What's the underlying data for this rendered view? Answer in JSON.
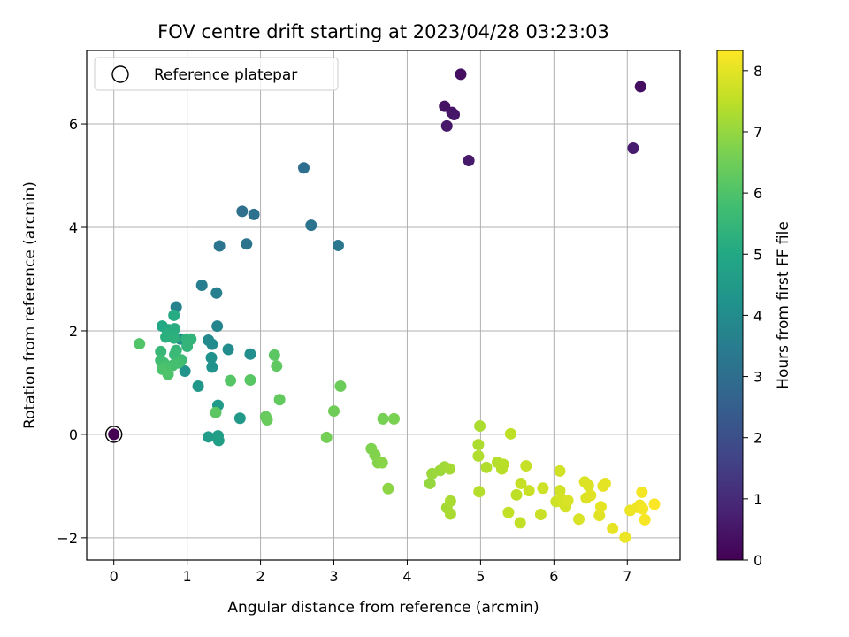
{
  "chart_data": {
    "type": "scatter",
    "title": "FOV centre drift starting at 2023/04/28 03:23:03",
    "xlabel": "Angular distance from reference (arcmin)",
    "ylabel": "Rotation from reference (arcmin)",
    "xlim": [
      -0.37,
      7.72
    ],
    "ylim": [
      -2.43,
      7.42
    ],
    "xticks": [
      0,
      1,
      2,
      3,
      4,
      5,
      6,
      7
    ],
    "xtick_labels": [
      "0",
      "1",
      "2",
      "3",
      "4",
      "5",
      "6",
      "7"
    ],
    "yticks": [
      -2,
      0,
      2,
      4,
      6
    ],
    "ytick_labels": [
      "−2",
      "0",
      "2",
      "4",
      "6"
    ],
    "grid": true,
    "legend": {
      "location": "upper left",
      "entries": [
        "Reference platepar"
      ]
    },
    "reference_point": {
      "x": 0,
      "y": 0
    },
    "colorbar": {
      "label": "Hours from first FF file",
      "colormap": "viridis",
      "range": [
        0,
        8.33
      ],
      "ticks": [
        0,
        1,
        2,
        3,
        4,
        5,
        6,
        7,
        8
      ],
      "tick_labels": [
        "0",
        "1",
        "2",
        "3",
        "4",
        "5",
        "6",
        "7",
        "8"
      ]
    },
    "point_fields": [
      "x_arcmin",
      "y_arcmin",
      "hours"
    ],
    "points": [
      [
        0.0,
        0.0,
        0.0
      ],
      [
        4.73,
        6.96,
        0.3
      ],
      [
        7.18,
        6.72,
        0.3
      ],
      [
        4.51,
        6.34,
        0.4
      ],
      [
        4.61,
        6.22,
        0.45
      ],
      [
        4.64,
        6.18,
        0.5
      ],
      [
        4.54,
        5.96,
        0.55
      ],
      [
        4.84,
        5.29,
        0.6
      ],
      [
        7.08,
        5.53,
        0.65
      ],
      [
        2.59,
        5.15,
        3.0
      ],
      [
        1.75,
        4.31,
        3.05
      ],
      [
        1.91,
        4.25,
        3.1
      ],
      [
        2.69,
        4.04,
        3.15
      ],
      [
        1.81,
        3.68,
        3.2
      ],
      [
        1.44,
        3.64,
        3.25
      ],
      [
        3.06,
        3.65,
        3.3
      ],
      [
        1.2,
        2.88,
        3.5
      ],
      [
        1.4,
        2.73,
        3.55
      ],
      [
        0.85,
        2.46,
        3.7
      ],
      [
        1.41,
        2.09,
        3.75
      ],
      [
        1.29,
        1.82,
        3.9
      ],
      [
        1.34,
        1.74,
        3.95
      ],
      [
        1.56,
        1.64,
        4.0
      ],
      [
        0.91,
        1.84,
        4.05
      ],
      [
        1.86,
        1.55,
        4.1
      ],
      [
        1.33,
        1.48,
        4.15
      ],
      [
        1.34,
        1.3,
        4.2
      ],
      [
        0.97,
        1.22,
        4.25
      ],
      [
        1.15,
        0.93,
        4.4
      ],
      [
        1.72,
        0.31,
        4.45
      ],
      [
        1.42,
        0.56,
        4.5
      ],
      [
        1.29,
        -0.05,
        4.55
      ],
      [
        1.42,
        -0.03,
        4.6
      ],
      [
        1.43,
        -0.12,
        4.65
      ],
      [
        0.66,
        2.09,
        5.0
      ],
      [
        0.75,
        2.02,
        5.05
      ],
      [
        0.82,
        2.3,
        5.1
      ],
      [
        0.83,
        2.04,
        5.15
      ],
      [
        0.73,
        1.94,
        5.2
      ],
      [
        0.71,
        1.88,
        5.25
      ],
      [
        0.82,
        1.86,
        5.3
      ],
      [
        0.99,
        1.84,
        5.35
      ],
      [
        1.05,
        1.84,
        5.4
      ],
      [
        1.0,
        1.7,
        5.45
      ],
      [
        0.85,
        1.62,
        5.5
      ],
      [
        0.64,
        1.6,
        5.55
      ],
      [
        0.83,
        1.54,
        5.6
      ],
      [
        0.92,
        1.44,
        5.65
      ],
      [
        0.64,
        1.43,
        5.7
      ],
      [
        0.68,
        1.38,
        5.75
      ],
      [
        0.88,
        1.38,
        5.8
      ],
      [
        0.8,
        1.33,
        5.85
      ],
      [
        0.7,
        1.3,
        5.9
      ],
      [
        0.66,
        1.26,
        5.95
      ],
      [
        0.74,
        1.16,
        6.0
      ],
      [
        0.35,
        1.75,
        6.05
      ],
      [
        1.59,
        1.04,
        6.1
      ],
      [
        1.86,
        1.05,
        6.15
      ],
      [
        1.39,
        0.42,
        6.2
      ],
      [
        2.19,
        1.53,
        6.2
      ],
      [
        2.22,
        1.32,
        6.25
      ],
      [
        2.26,
        0.67,
        6.3
      ],
      [
        2.07,
        0.34,
        6.35
      ],
      [
        2.09,
        0.28,
        6.4
      ],
      [
        3.09,
        0.93,
        6.45
      ],
      [
        3.0,
        0.45,
        6.5
      ],
      [
        2.9,
        -0.06,
        6.55
      ],
      [
        3.67,
        0.3,
        6.6
      ],
      [
        3.82,
        0.3,
        6.65
      ],
      [
        3.51,
        -0.28,
        6.7
      ],
      [
        3.56,
        -0.4,
        6.75
      ],
      [
        3.6,
        -0.55,
        6.8
      ],
      [
        3.66,
        -0.55,
        6.85
      ],
      [
        3.74,
        -1.05,
        6.9
      ],
      [
        4.31,
        -0.95,
        7.0
      ],
      [
        4.34,
        -0.76,
        7.05
      ],
      [
        4.45,
        -0.7,
        7.1
      ],
      [
        4.51,
        -0.63,
        7.15
      ],
      [
        4.58,
        -0.67,
        7.2
      ],
      [
        4.54,
        -1.42,
        7.2
      ],
      [
        4.59,
        -1.29,
        7.25
      ],
      [
        4.59,
        -1.54,
        7.25
      ],
      [
        4.99,
        0.16,
        7.3
      ],
      [
        4.97,
        -0.2,
        7.3
      ],
      [
        4.97,
        -0.42,
        7.35
      ],
      [
        5.08,
        -0.64,
        7.35
      ],
      [
        4.98,
        -1.11,
        7.4
      ],
      [
        5.23,
        -0.54,
        7.4
      ],
      [
        5.31,
        -0.58,
        7.45
      ],
      [
        5.29,
        -0.67,
        7.45
      ],
      [
        5.41,
        0.01,
        7.5
      ],
      [
        5.49,
        -1.17,
        7.5
      ],
      [
        5.38,
        -1.51,
        7.55
      ],
      [
        5.54,
        -1.71,
        7.55
      ],
      [
        5.55,
        -0.95,
        7.6
      ],
      [
        5.62,
        -0.61,
        7.6
      ],
      [
        5.66,
        -1.09,
        7.65
      ],
      [
        5.82,
        -1.55,
        7.65
      ],
      [
        5.85,
        -1.04,
        7.7
      ],
      [
        6.03,
        -1.3,
        7.7
      ],
      [
        6.08,
        -0.71,
        7.75
      ],
      [
        6.08,
        -1.09,
        7.75
      ],
      [
        6.1,
        -1.24,
        7.8
      ],
      [
        6.12,
        -1.32,
        7.8
      ],
      [
        6.16,
        -1.4,
        7.8
      ],
      [
        6.19,
        -1.28,
        7.85
      ],
      [
        6.34,
        -1.64,
        7.85
      ],
      [
        6.42,
        -0.92,
        7.9
      ],
      [
        6.44,
        -1.23,
        7.9
      ],
      [
        6.47,
        -0.99,
        7.9
      ],
      [
        6.5,
        -1.18,
        7.95
      ],
      [
        6.62,
        -1.57,
        7.95
      ],
      [
        6.64,
        -1.4,
        8.0
      ],
      [
        6.67,
        -1.0,
        8.0
      ],
      [
        6.7,
        -0.95,
        8.0
      ],
      [
        6.8,
        -1.82,
        8.05
      ],
      [
        6.97,
        -1.99,
        8.1
      ],
      [
        7.04,
        -1.47,
        8.1
      ],
      [
        7.14,
        -1.41,
        8.15
      ],
      [
        7.17,
        -1.37,
        8.15
      ],
      [
        7.2,
        -1.12,
        8.2
      ],
      [
        7.21,
        -1.44,
        8.2
      ],
      [
        7.24,
        -1.65,
        8.25
      ],
      [
        7.37,
        -1.35,
        8.3
      ]
    ]
  }
}
